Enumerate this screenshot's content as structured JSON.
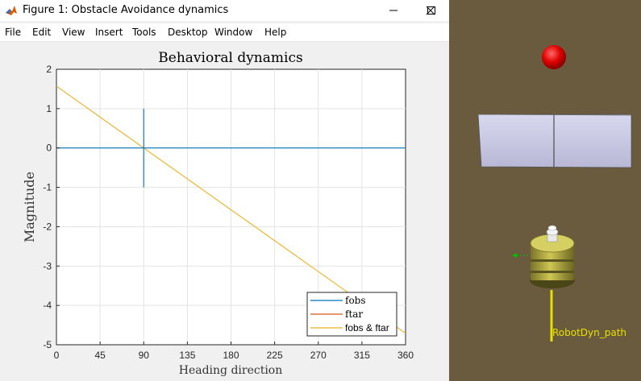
{
  "window": {
    "title": "Figure 1: Obstacle Avoidance dynamics",
    "minimize_icon": "minimize-icon",
    "maximize_icon": "maximize-icon",
    "close_icon": "close-icon",
    "dock_arrow": "↘"
  },
  "menubar": {
    "items": [
      "File",
      "Edit",
      "View",
      "Insert",
      "Tools",
      "Desktop",
      "Window",
      "Help"
    ]
  },
  "chart_data": {
    "type": "line",
    "title": "Behavioral dynamics",
    "xlabel": "Heading direction",
    "ylabel": "Magnitude",
    "xlim": [
      0,
      360
    ],
    "ylim": [
      -5,
      2
    ],
    "xticks": [
      0,
      45,
      90,
      135,
      180,
      225,
      270,
      315,
      360
    ],
    "yticks": [
      2,
      1,
      0,
      -1,
      -2,
      -3,
      -4,
      -5
    ],
    "grid": true,
    "legend_position": "bottom-right",
    "series": [
      {
        "name": "fobs",
        "color": "#0072bd",
        "segments": [
          [
            [
              0,
              0
            ],
            [
              360,
              0
            ]
          ],
          [
            [
              90,
              -1
            ],
            [
              90,
              1
            ]
          ]
        ]
      },
      {
        "name": "ftar",
        "color": "#d95319",
        "segments": []
      },
      {
        "name": "fobs & ftar",
        "color": "#edb120",
        "segments": [
          [
            [
              0,
              1.57
            ],
            [
              360,
              -4.71
            ]
          ]
        ]
      }
    ]
  },
  "scene": {
    "background": "#6a5a3e",
    "target_color": "#e00000",
    "obstacle_color": "#c8c8e4",
    "robot_color": "#b9b13c",
    "path_color": "#e8e000",
    "path_label": "RobotDyn_path"
  }
}
